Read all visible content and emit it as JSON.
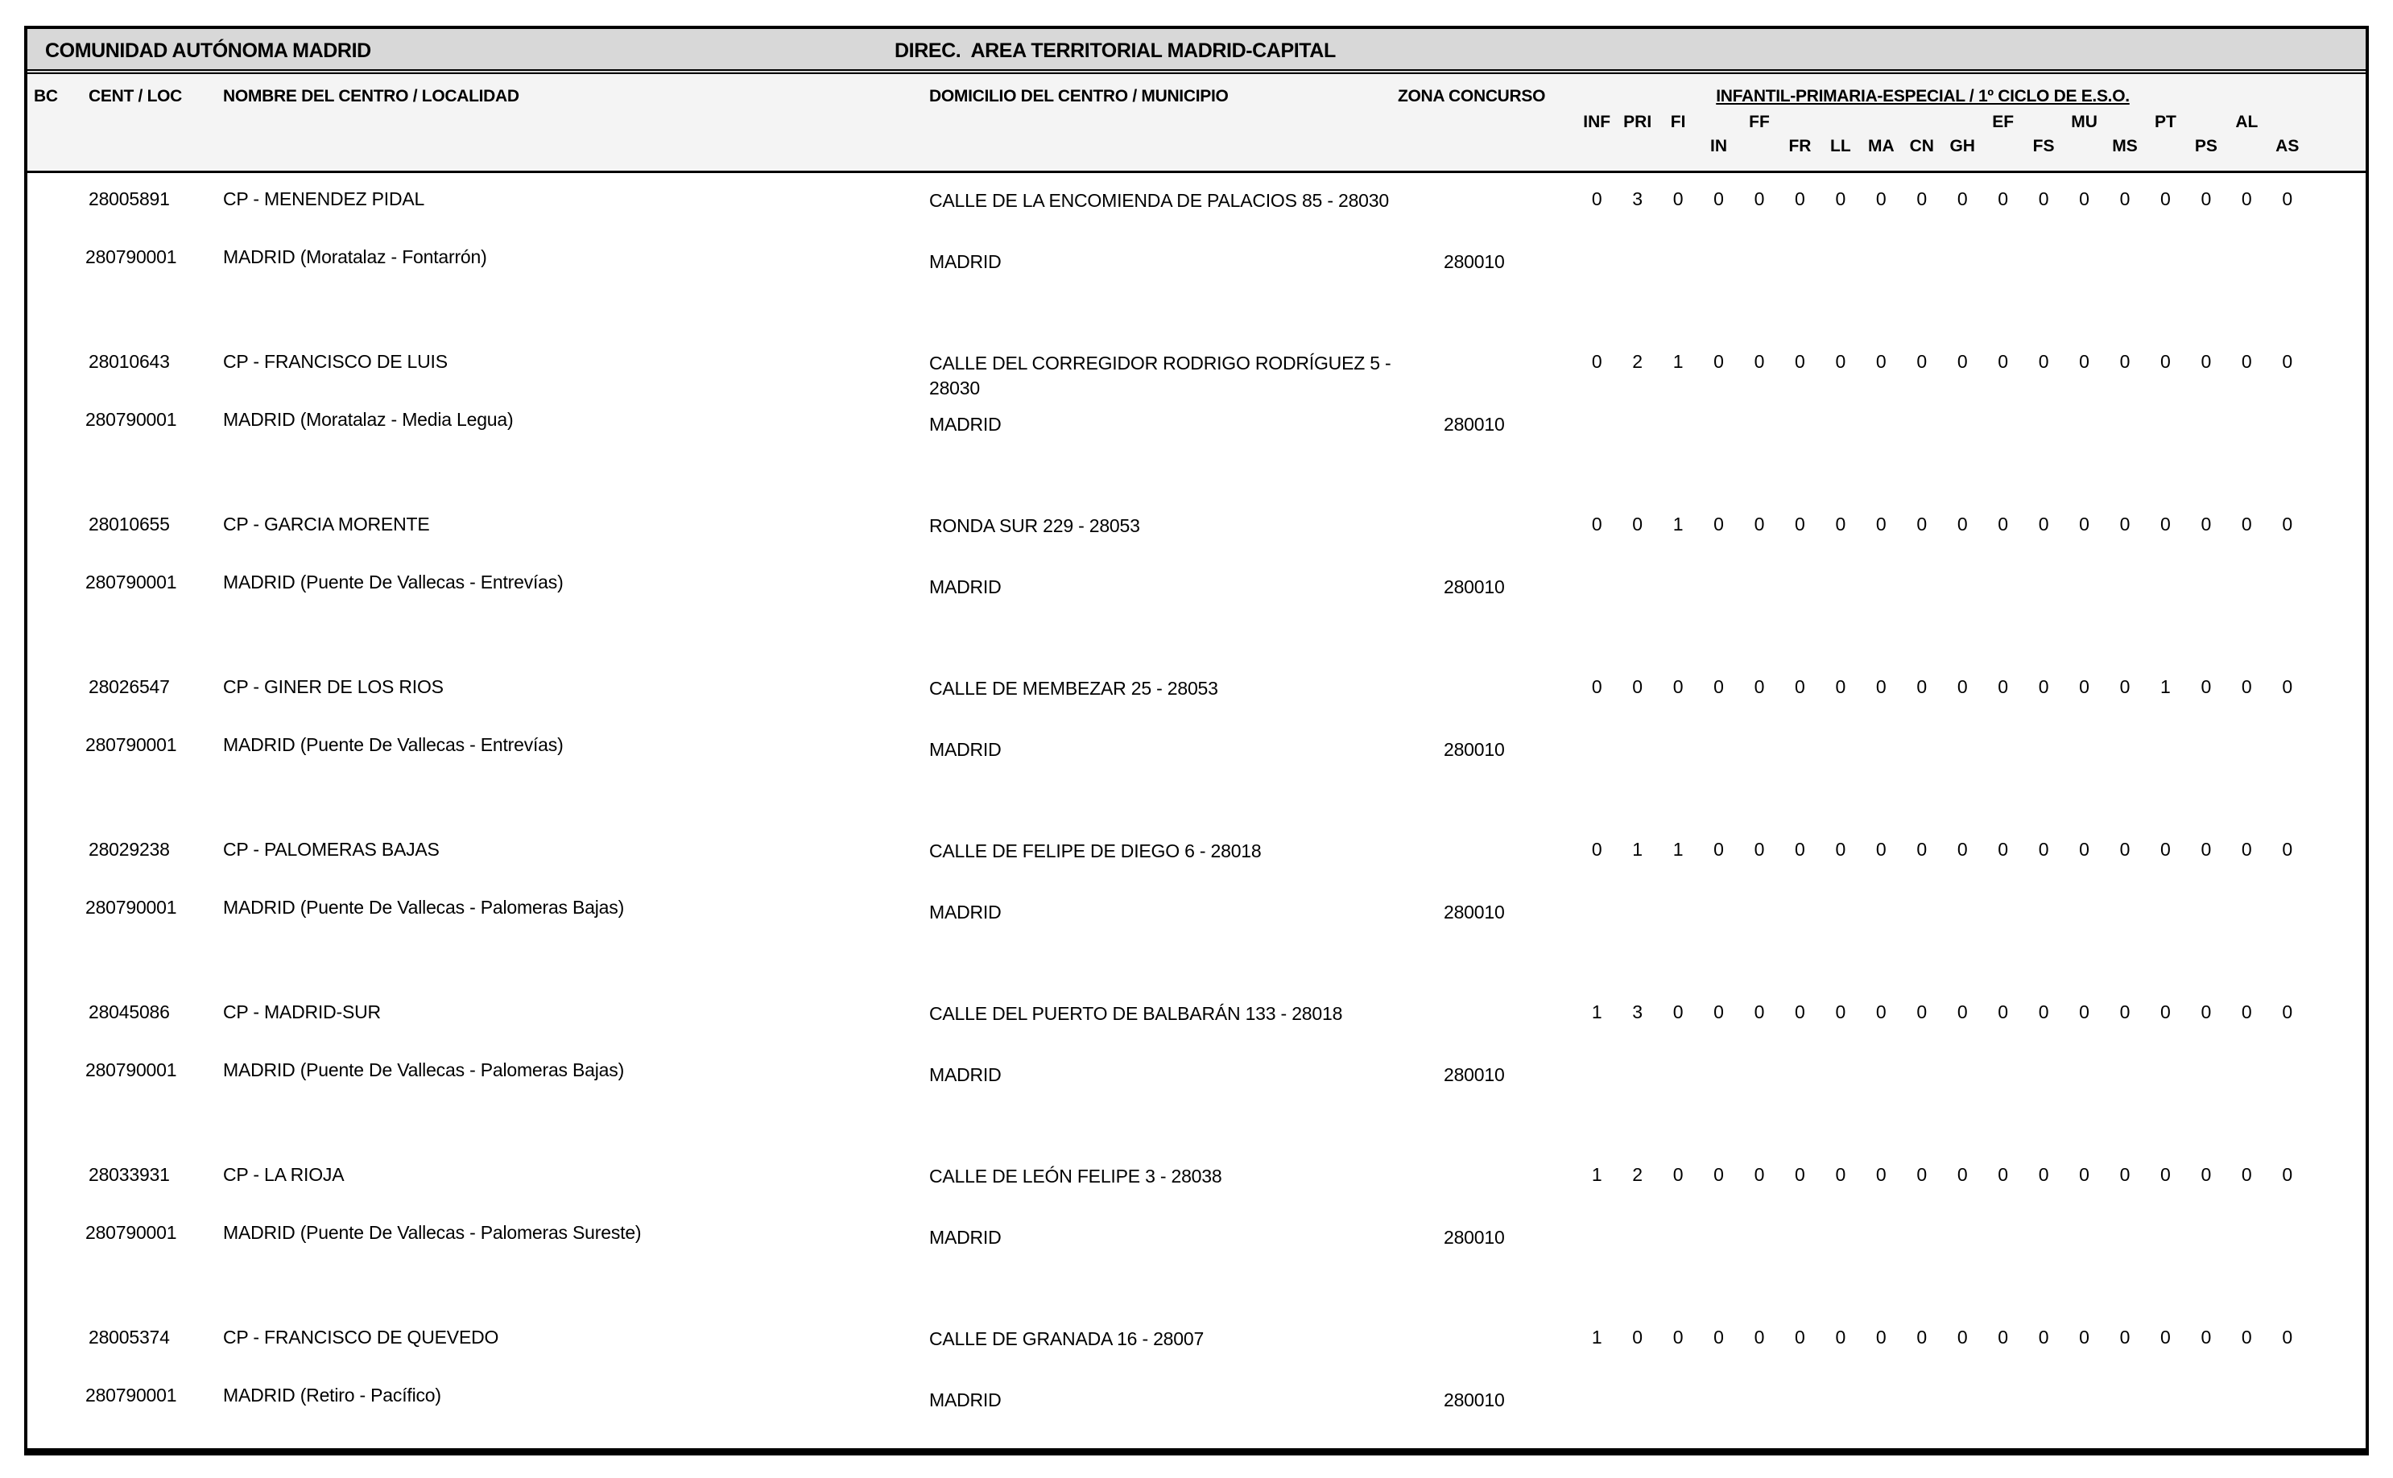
{
  "header": {
    "left_title": "COMUNIDAD AUTÓNOMA MADRID",
    "right_title": "DIREC.  AREA TERRITORIAL MADRID-CAPITAL"
  },
  "columns": {
    "bc": "BC",
    "cent_loc": "CENT / LOC",
    "nombre": "NOMBRE DEL CENTRO / LOCALIDAD",
    "domicilio": "DOMICILIO DEL CENTRO / MUNICIPIO",
    "zona": "ZONA CONCURSO",
    "group": "INFANTIL-PRIMARIA-ESPECIAL / 1º CICLO DE E.S.O.",
    "subjects_row1": [
      "INF",
      "PRI",
      "FI",
      "",
      "FF",
      "",
      "",
      "",
      "",
      "",
      "EF",
      "",
      "MU",
      "",
      "PT",
      "",
      "AL",
      ""
    ],
    "subjects_row2": [
      "",
      "",
      "",
      "IN",
      "",
      "FR",
      "LL",
      "MA",
      "CN",
      "GH",
      "",
      "FS",
      "",
      "MS",
      "",
      "PS",
      "",
      "AS"
    ]
  },
  "colors": {
    "title_band": "#d8d8d8",
    "header_band": "#f4f4f4",
    "border": "#000000"
  },
  "rows": [
    {
      "cent": "28005891",
      "nombre": "CP - MENENDEZ PIDAL",
      "domicilio": "CALLE DE LA ENCOMIENDA DE PALACIOS 85 - 28030",
      "loc": "280790001",
      "localidad": "MADRID (Moratalaz - Fontarrón)",
      "municipio": "MADRID",
      "zona": "280010",
      "values": [
        0,
        3,
        0,
        0,
        0,
        0,
        0,
        0,
        0,
        0,
        0,
        0,
        0,
        0,
        0,
        0,
        0,
        0
      ]
    },
    {
      "cent": "28010643",
      "nombre": "CP - FRANCISCO DE LUIS",
      "domicilio": "CALLE DEL CORREGIDOR RODRIGO RODRÍGUEZ 5 - 28030",
      "loc": "280790001",
      "localidad": "MADRID (Moratalaz - Media Legua)",
      "municipio": "MADRID",
      "zona": "280010",
      "values": [
        0,
        2,
        1,
        0,
        0,
        0,
        0,
        0,
        0,
        0,
        0,
        0,
        0,
        0,
        0,
        0,
        0,
        0
      ]
    },
    {
      "cent": "28010655",
      "nombre": "CP - GARCIA MORENTE",
      "domicilio": "RONDA SUR 229 - 28053",
      "loc": "280790001",
      "localidad": "MADRID (Puente De Vallecas - Entrevías)",
      "municipio": "MADRID",
      "zona": "280010",
      "values": [
        0,
        0,
        1,
        0,
        0,
        0,
        0,
        0,
        0,
        0,
        0,
        0,
        0,
        0,
        0,
        0,
        0,
        0
      ]
    },
    {
      "cent": "28026547",
      "nombre": "CP - GINER DE LOS RIOS",
      "domicilio": "CALLE DE MEMBEZAR 25 - 28053",
      "loc": "280790001",
      "localidad": "MADRID (Puente De Vallecas - Entrevías)",
      "municipio": "MADRID",
      "zona": "280010",
      "values": [
        0,
        0,
        0,
        0,
        0,
        0,
        0,
        0,
        0,
        0,
        0,
        0,
        0,
        0,
        1,
        0,
        0,
        0
      ]
    },
    {
      "cent": "28029238",
      "nombre": "CP - PALOMERAS BAJAS",
      "domicilio": "CALLE DE FELIPE DE DIEGO 6 - 28018",
      "loc": "280790001",
      "localidad": "MADRID (Puente De Vallecas - Palomeras Bajas)",
      "municipio": "MADRID",
      "zona": "280010",
      "values": [
        0,
        1,
        1,
        0,
        0,
        0,
        0,
        0,
        0,
        0,
        0,
        0,
        0,
        0,
        0,
        0,
        0,
        0
      ]
    },
    {
      "cent": "28045086",
      "nombre": "CP - MADRID-SUR",
      "domicilio": "CALLE DEL PUERTO DE BALBARÁN 133 - 28018",
      "loc": "280790001",
      "localidad": "MADRID (Puente De Vallecas - Palomeras Bajas)",
      "municipio": "MADRID",
      "zona": "280010",
      "values": [
        1,
        3,
        0,
        0,
        0,
        0,
        0,
        0,
        0,
        0,
        0,
        0,
        0,
        0,
        0,
        0,
        0,
        0
      ]
    },
    {
      "cent": "28033931",
      "nombre": "CP - LA RIOJA",
      "domicilio": "CALLE DE LEÓN FELIPE 3 - 28038",
      "loc": "280790001",
      "localidad": "MADRID (Puente De Vallecas - Palomeras Sureste)",
      "municipio": "MADRID",
      "zona": "280010",
      "values": [
        1,
        2,
        0,
        0,
        0,
        0,
        0,
        0,
        0,
        0,
        0,
        0,
        0,
        0,
        0,
        0,
        0,
        0
      ]
    },
    {
      "cent": "28005374",
      "nombre": "CP - FRANCISCO DE QUEVEDO",
      "domicilio": "CALLE DE GRANADA 16 - 28007",
      "loc": "280790001",
      "localidad": "MADRID (Retiro - Pacífico)",
      "municipio": "MADRID",
      "zona": "280010",
      "values": [
        1,
        0,
        0,
        0,
        0,
        0,
        0,
        0,
        0,
        0,
        0,
        0,
        0,
        0,
        0,
        0,
        0,
        0
      ]
    }
  ]
}
